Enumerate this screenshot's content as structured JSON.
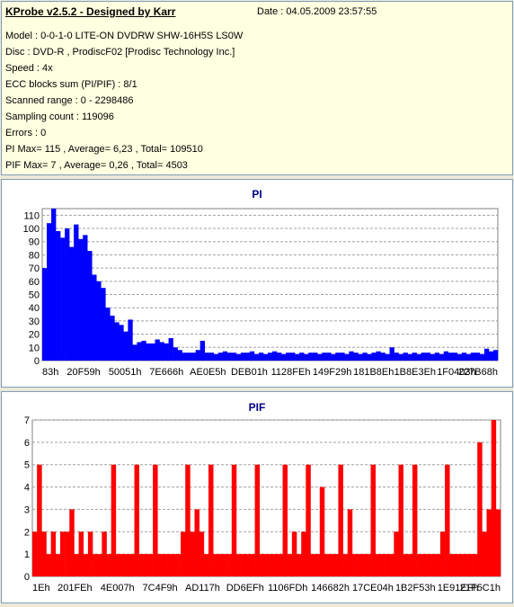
{
  "info": {
    "title": "KProbe v2.5.2 - Designed by Karr",
    "date": "Date : 04.05.2009 23:57:55",
    "lines": [
      "Model : 0-0-1-0 LITE-ON DVDRW SHW-16H5S  LS0W",
      "Disc : DVD-R , ProdiscF02 [Prodisc Technology Inc.]",
      "Speed : 4x",
      "ECC blocks sum (PI/PIF) : 8/1",
      "Scanned range : 0 - 2298486",
      "Sampling count : 119096",
      "Errors : 0",
      "PI Max= 115 , Average= 6,23 , Total= 109510",
      "PIF Max= 7 , Average= 0,26 , Total= 4503"
    ]
  },
  "colors": {
    "pi_series": "#0000FF",
    "pif_series": "#FF0000",
    "title": "#000080",
    "background": "#ECE9D8"
  },
  "chart_data": [
    {
      "type": "area",
      "title": "PI",
      "ylim": [
        0,
        115
      ],
      "yticks": [
        0,
        10,
        20,
        30,
        40,
        50,
        60,
        70,
        80,
        90,
        100,
        110
      ],
      "xticks": [
        "83h",
        "20F59h",
        "50051h",
        "7E666h",
        "AE0E5h",
        "DEB01h",
        "1128FEh",
        "149F29h",
        "181B8Eh",
        "1B8E3Eh",
        "1F0403h",
        "227B68h"
      ],
      "grid": true,
      "series": [
        {
          "values": [
            70,
            104,
            115,
            98,
            93,
            100,
            86,
            103,
            92,
            95,
            83,
            65,
            60,
            55,
            40,
            34,
            29,
            27,
            22,
            31,
            12,
            14,
            15,
            13,
            13,
            16,
            14,
            13,
            17,
            10,
            8,
            6,
            6,
            6,
            8,
            15,
            6,
            6,
            5,
            6,
            7,
            6,
            6,
            5,
            6,
            6,
            7,
            5,
            6,
            5,
            6,
            7,
            6,
            5,
            6,
            6,
            5,
            6,
            5,
            6,
            6,
            5,
            6,
            6,
            5,
            6,
            6,
            5,
            7,
            6,
            5,
            6,
            5,
            6,
            7,
            6,
            5,
            10,
            6,
            5,
            6,
            5,
            6,
            5,
            6,
            6,
            5,
            6,
            5,
            7,
            6,
            6,
            5,
            6,
            5,
            6,
            6,
            5,
            9,
            7,
            8
          ]
        }
      ]
    },
    {
      "type": "bar",
      "title": "PIF",
      "ylim": [
        0,
        7
      ],
      "yticks": [
        0,
        1,
        2,
        3,
        4,
        5,
        6,
        7
      ],
      "xticks": [
        "1Eh",
        "201FEh",
        "4E007h",
        "7C4F9h",
        "AD117h",
        "DD6EFh",
        "1106FDh",
        "146682h",
        "17CE04h",
        "1B2F53h",
        "1E91EFh",
        "21F5C1h"
      ],
      "grid": true,
      "series": [
        {
          "values": [
            2,
            5,
            2,
            1,
            2,
            1,
            2,
            2,
            3,
            1,
            2,
            1,
            2,
            1,
            1,
            2,
            1,
            5,
            1,
            1,
            1,
            1,
            5,
            1,
            1,
            1,
            5,
            1,
            1,
            1,
            1,
            1,
            2,
            5,
            2,
            3,
            2,
            1,
            5,
            1,
            1,
            1,
            1,
            5,
            1,
            1,
            1,
            1,
            5,
            1,
            1,
            1,
            1,
            1,
            5,
            1,
            2,
            1,
            2,
            5,
            1,
            1,
            4,
            1,
            1,
            1,
            5,
            1,
            3,
            1,
            1,
            1,
            1,
            5,
            1,
            1,
            1,
            1,
            2,
            5,
            1,
            1,
            5,
            1,
            1,
            1,
            1,
            1,
            2,
            5,
            1,
            1,
            1,
            1,
            1,
            1,
            6,
            2,
            3,
            7,
            3
          ]
        }
      ]
    }
  ]
}
